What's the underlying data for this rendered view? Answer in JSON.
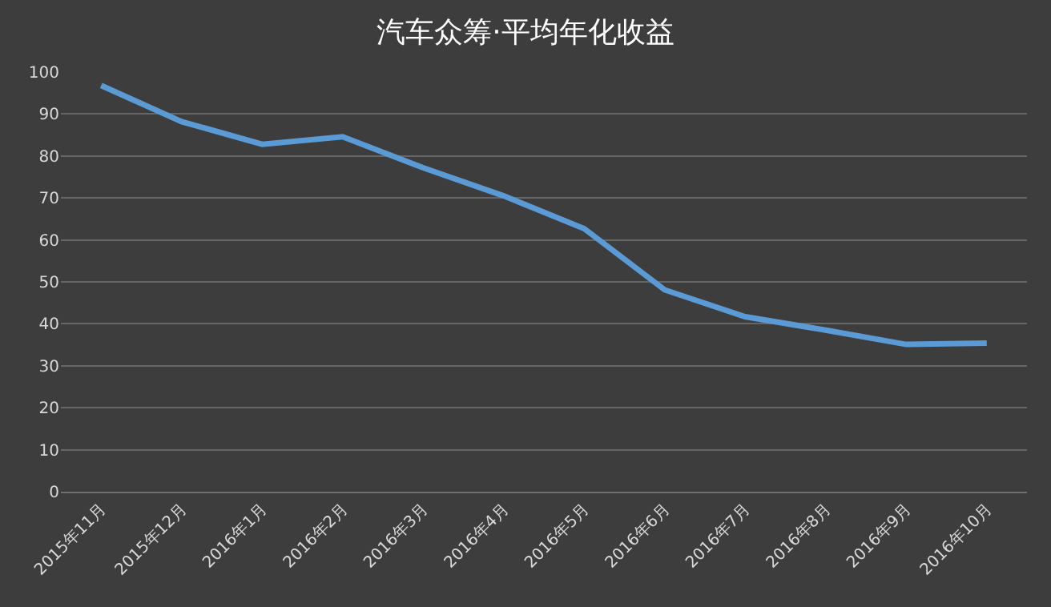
{
  "chart_data": {
    "type": "line",
    "title": "汽车众筹·平均年化收益",
    "categories": [
      "2015年11月",
      "2015年12月",
      "2016年1月",
      "2016年2月",
      "2016年3月",
      "2016年4月",
      "2016年5月",
      "2016年6月",
      "2016年7月",
      "2016年8月",
      "2016年9月",
      "2016年10月"
    ],
    "series": [
      {
        "color": "#5b9bd5",
        "values": [
          96.8,
          88.2,
          82.8,
          84.6,
          77.2,
          70.5,
          62.7,
          48.1,
          41.7,
          38.5,
          35.1,
          35.4
        ]
      }
    ],
    "ylim": [
      0,
      100
    ],
    "yticks": [
      0,
      10,
      20,
      30,
      40,
      50,
      60,
      70,
      80,
      90,
      100
    ],
    "grid": "y",
    "legend": false,
    "marker": "none",
    "line_style": "solid"
  }
}
